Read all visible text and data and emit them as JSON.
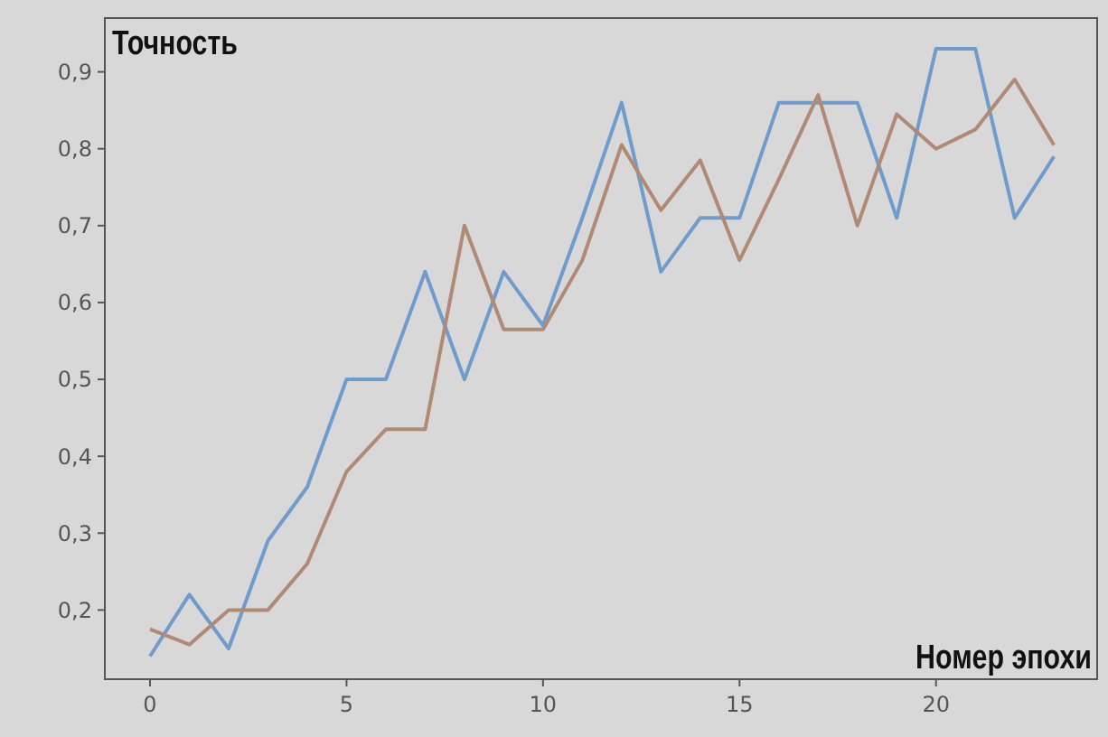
{
  "chart_data": {
    "type": "line",
    "ylabel": "Точность",
    "xlabel": "Номер эпохи",
    "x": [
      0,
      1,
      2,
      3,
      4,
      5,
      6,
      7,
      8,
      9,
      10,
      11,
      12,
      13,
      14,
      15,
      16,
      17,
      18,
      19,
      20,
      21,
      22,
      23
    ],
    "series": [
      {
        "color": "#6f9ccc",
        "values": [
          0.14,
          0.22,
          0.15,
          0.29,
          0.36,
          0.5,
          0.5,
          0.64,
          0.5,
          0.64,
          0.57,
          0.71,
          0.86,
          0.64,
          0.71,
          0.71,
          0.86,
          0.86,
          0.86,
          0.71,
          0.93,
          0.93,
          0.71,
          0.79
        ]
      },
      {
        "color": "#b08a74",
        "values": [
          0.175,
          0.155,
          0.2,
          0.2,
          0.26,
          0.38,
          0.435,
          0.435,
          0.7,
          0.565,
          0.565,
          0.655,
          0.805,
          0.72,
          0.785,
          0.655,
          0.76,
          0.87,
          0.7,
          0.845,
          0.8,
          0.825,
          0.89,
          0.805
        ]
      }
    ],
    "xlim": [
      -1.15,
      24.1
    ],
    "ylim": [
      0.11,
      0.97
    ],
    "xticks": [
      0,
      5,
      10,
      15,
      20
    ],
    "yticks": [
      {
        "value": 0.2,
        "label": "0,2"
      },
      {
        "value": 0.3,
        "label": "0,3"
      },
      {
        "value": 0.4,
        "label": "0,4"
      },
      {
        "value": 0.5,
        "label": "0,5"
      },
      {
        "value": 0.6,
        "label": "0,6"
      },
      {
        "value": 0.7,
        "label": "0,7"
      },
      {
        "value": 0.8,
        "label": "0,8"
      },
      {
        "value": 0.9,
        "label": "0,9"
      }
    ],
    "grid": false,
    "marker": "none",
    "line_style": "solid"
  }
}
